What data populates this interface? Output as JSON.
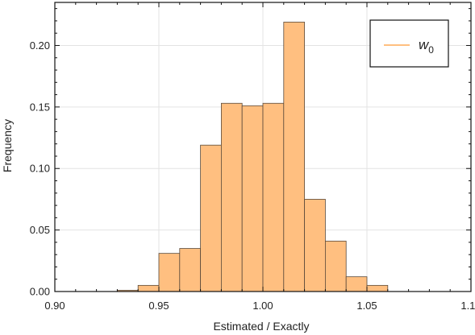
{
  "chart_data": {
    "type": "bar",
    "title": "",
    "xlabel": "Estimated / Exactly",
    "ylabel": "Frequency",
    "xlim": [
      0.9,
      1.1
    ],
    "ylim": [
      0,
      0.235
    ],
    "grid": true,
    "legend_position": "top-right",
    "bin_width": 0.01,
    "x_ticks": [
      "0.90",
      "0.95",
      "1.00",
      "1.05",
      "1.10"
    ],
    "x_tick_values": [
      0.9,
      0.95,
      1.0,
      1.05,
      1.1
    ],
    "y_ticks": [
      "0.00",
      "0.05",
      "0.10",
      "0.15",
      "0.20"
    ],
    "y_tick_values": [
      0.0,
      0.05,
      0.1,
      0.15,
      0.2
    ],
    "series": [
      {
        "name": "w",
        "name_subscript": "0",
        "color": "#FFBF80",
        "edge_color": "#5a4a3a",
        "bins_left": [
          0.93,
          0.94,
          0.95,
          0.96,
          0.97,
          0.98,
          0.99,
          1.0,
          1.01,
          1.02,
          1.03,
          1.04,
          1.05
        ],
        "values": [
          0.001,
          0.005,
          0.031,
          0.035,
          0.119,
          0.153,
          0.151,
          0.153,
          0.219,
          0.075,
          0.041,
          0.012,
          0.005
        ]
      }
    ]
  }
}
